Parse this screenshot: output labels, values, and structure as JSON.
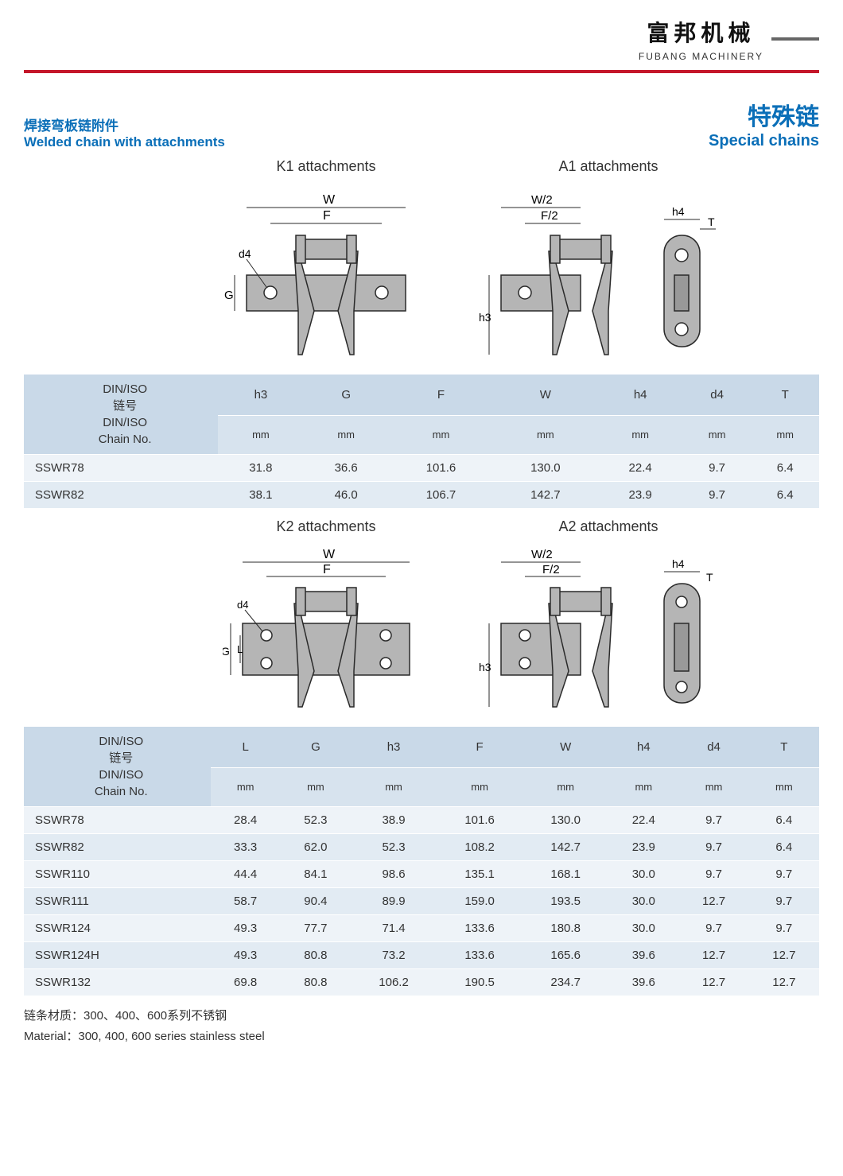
{
  "brand": {
    "cn": "富邦机械",
    "en": "FUBANG MACHINERY"
  },
  "title": {
    "left_cn": "焊接弯板链附件",
    "left_en": "Welded chain with attachments",
    "right_cn": "特殊链",
    "right_en": "Special chains"
  },
  "colors": {
    "accent_red": "#c4162a",
    "accent_blue": "#0b6fb8",
    "header_bg1": "#c9d9e8",
    "header_bg2": "#d7e3ee",
    "row_odd": "#eef3f8",
    "row_even": "#e2ebf3",
    "diagram_fill": "#b5b5b5",
    "diagram_stroke": "#2a2a2a"
  },
  "diagrams": {
    "set1": {
      "k_label": "K1 attachments",
      "a_label": "A1 attachments",
      "dims_k": [
        "W",
        "F",
        "d4",
        "G"
      ],
      "dims_a": [
        "W/2",
        "F/2",
        "h3",
        "h4",
        "T"
      ]
    },
    "set2": {
      "k_label": "K2 attachments",
      "a_label": "A2 attachments",
      "dims_k": [
        "W",
        "F",
        "d4",
        "G",
        "L"
      ],
      "dims_a": [
        "W/2",
        "F/2",
        "h3",
        "h4",
        "T"
      ]
    }
  },
  "table1": {
    "id_header_1": "DIN/ISO",
    "id_header_2": "链号",
    "id_header_3": "DIN/ISO",
    "id_header_4": "Chain No.",
    "columns": [
      "h3",
      "G",
      "F",
      "W",
      "h4",
      "d4",
      "T"
    ],
    "unit": "mm",
    "rows": [
      [
        "SSWR78",
        "31.8",
        "36.6",
        "101.6",
        "130.0",
        "22.4",
        "9.7",
        "6.4"
      ],
      [
        "SSWR82",
        "38.1",
        "46.0",
        "106.7",
        "142.7",
        "23.9",
        "9.7",
        "6.4"
      ]
    ]
  },
  "table2": {
    "id_header_1": "DIN/ISO",
    "id_header_2": "链号",
    "id_header_3": "DIN/ISO",
    "id_header_4": "Chain No.",
    "columns": [
      "L",
      "G",
      "h3",
      "F",
      "W",
      "h4",
      "d4",
      "T"
    ],
    "unit": "mm",
    "rows": [
      [
        "SSWR78",
        "28.4",
        "52.3",
        "38.9",
        "101.6",
        "130.0",
        "22.4",
        "9.7",
        "6.4"
      ],
      [
        "SSWR82",
        "33.3",
        "62.0",
        "52.3",
        "108.2",
        "142.7",
        "23.9",
        "9.7",
        "6.4"
      ],
      [
        "SSWR110",
        "44.4",
        "84.1",
        "98.6",
        "135.1",
        "168.1",
        "30.0",
        "9.7",
        "9.7"
      ],
      [
        "SSWR111",
        "58.7",
        "90.4",
        "89.9",
        "159.0",
        "193.5",
        "30.0",
        "12.7",
        "9.7"
      ],
      [
        "SSWR124",
        "49.3",
        "77.7",
        "71.4",
        "133.6",
        "180.8",
        "30.0",
        "9.7",
        "9.7"
      ],
      [
        "SSWR124H",
        "49.3",
        "80.8",
        "73.2",
        "133.6",
        "165.6",
        "39.6",
        "12.7",
        "12.7"
      ],
      [
        "SSWR132",
        "69.8",
        "80.8",
        "106.2",
        "190.5",
        "234.7",
        "39.6",
        "12.7",
        "12.7"
      ]
    ]
  },
  "material": {
    "cn": "链条材质：300、400、600系列不锈钢",
    "en": "Material：300, 400, 600 series stainless steel"
  }
}
